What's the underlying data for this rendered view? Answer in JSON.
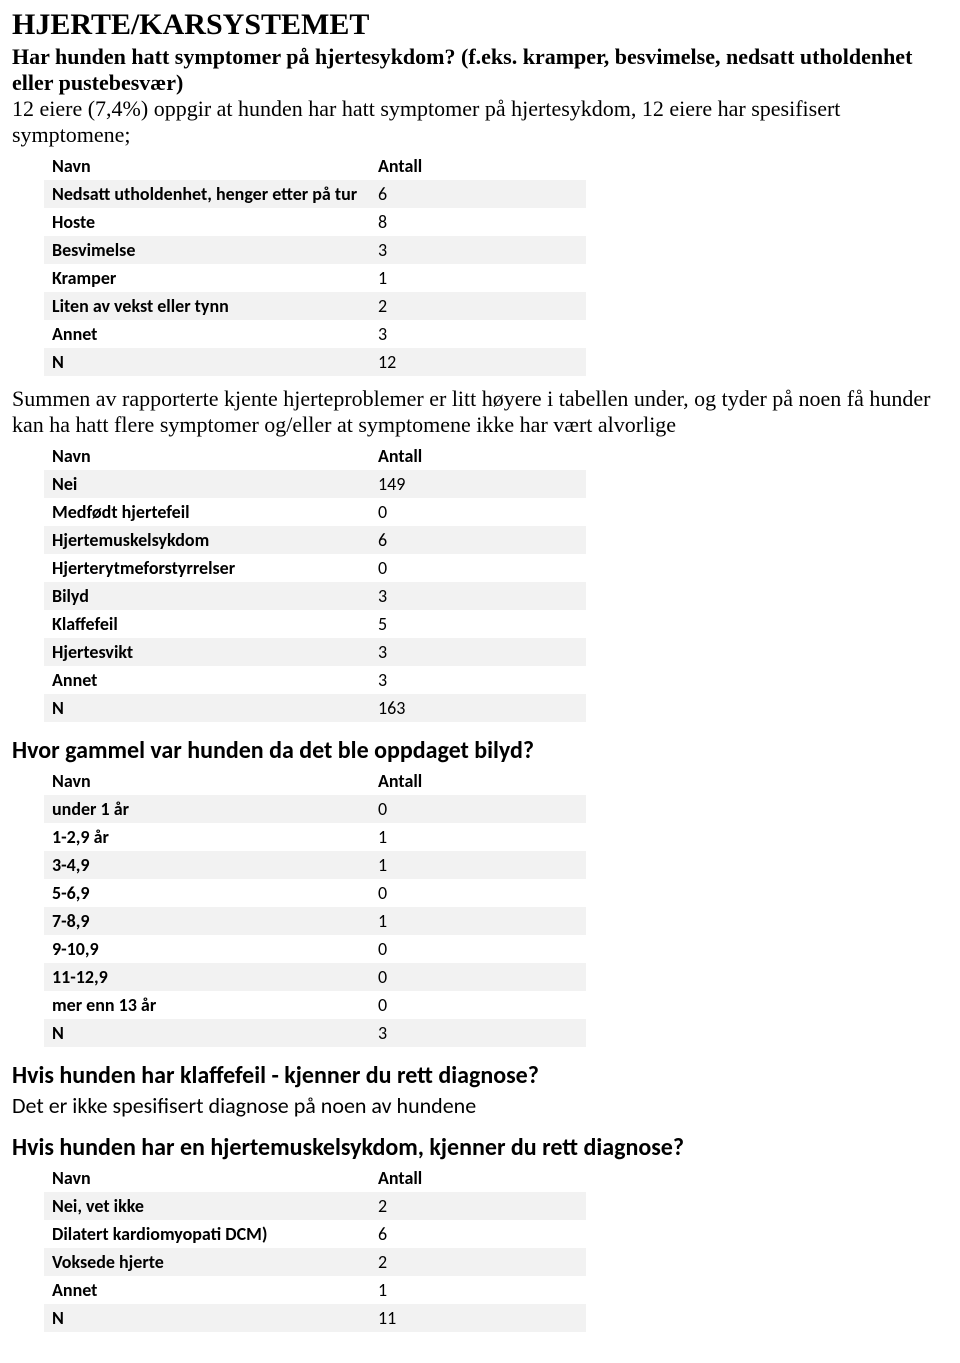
{
  "title": "HJERTE/KARSYSTEMET",
  "intro_heading": "Har hunden hatt symptomer på hjertesykdom? (f.eks. kramper, besvimelse, nedsatt utholdenhet eller pustebesvær)",
  "intro_text": "12 eiere (7,4%) oppgir at hunden har hatt symptomer på hjertesykdom, 12 eiere har spesifisert symptomene;",
  "table1": {
    "header_name": "Navn",
    "header_count": "Antall",
    "rows": [
      {
        "name": "Nedsatt utholdenhet, henger etter på tur",
        "count": "6"
      },
      {
        "name": "Hoste",
        "count": "8"
      },
      {
        "name": "Besvimelse",
        "count": "3"
      },
      {
        "name": "Kramper",
        "count": "1"
      },
      {
        "name": "Liten av vekst eller tynn",
        "count": "2"
      },
      {
        "name": "Annet",
        "count": "3"
      },
      {
        "name": "N",
        "count": "12"
      }
    ]
  },
  "section2_text": "Summen av rapporterte kjente hjerteproblemer er litt høyere i tabellen under, og tyder på noen få hunder kan ha hatt flere symptomer og/eller at symptomene ikke har vært alvorlige",
  "table2": {
    "header_name": "Navn",
    "header_count": "Antall",
    "rows": [
      {
        "name": "Nei",
        "count": "149"
      },
      {
        "name": "Medfødt hjertefeil",
        "count": "0"
      },
      {
        "name": "Hjertemuskelsykdom",
        "count": "6"
      },
      {
        "name": "Hjerterytmeforstyrrelser",
        "count": "0"
      },
      {
        "name": "Bilyd",
        "count": "3"
      },
      {
        "name": "Klaffefeil",
        "count": "5"
      },
      {
        "name": "Hjertesvikt",
        "count": "3"
      },
      {
        "name": "Annet",
        "count": "3"
      },
      {
        "name": "N",
        "count": "163"
      }
    ]
  },
  "section3_heading": "Hvor gammel var hunden da det ble oppdaget bilyd?",
  "table3": {
    "header_name": "Navn",
    "header_count": "Antall",
    "rows": [
      {
        "name": "under 1 år",
        "count": "0"
      },
      {
        "name": "1-2,9 år",
        "count": "1"
      },
      {
        "name": "3-4,9",
        "count": "1"
      },
      {
        "name": "5-6,9",
        "count": "0"
      },
      {
        "name": "7-8,9",
        "count": "1"
      },
      {
        "name": "9-10,9",
        "count": "0"
      },
      {
        "name": "11-12,9",
        "count": "0"
      },
      {
        "name": "mer enn 13 år",
        "count": "0"
      },
      {
        "name": "N",
        "count": "3"
      }
    ]
  },
  "section4_heading": "Hvis hunden har klaffefeil - kjenner du rett diagnose?",
  "section4_text": "Det er ikke spesifisert diagnose på noen av hundene",
  "section5_heading": "Hvis hunden har en hjertemuskelsykdom, kjenner du rett diagnose?",
  "table5": {
    "header_name": "Navn",
    "header_count": "Antall",
    "rows": [
      {
        "name": "Nei, vet ikke",
        "count": "2"
      },
      {
        "name": "Dilatert kardiomyopati DCM)",
        "count": "6"
      },
      {
        "name": "Voksede hjerte",
        "count": "2"
      },
      {
        "name": "Annet",
        "count": "1"
      },
      {
        "name": "N",
        "count": "11"
      }
    ]
  }
}
